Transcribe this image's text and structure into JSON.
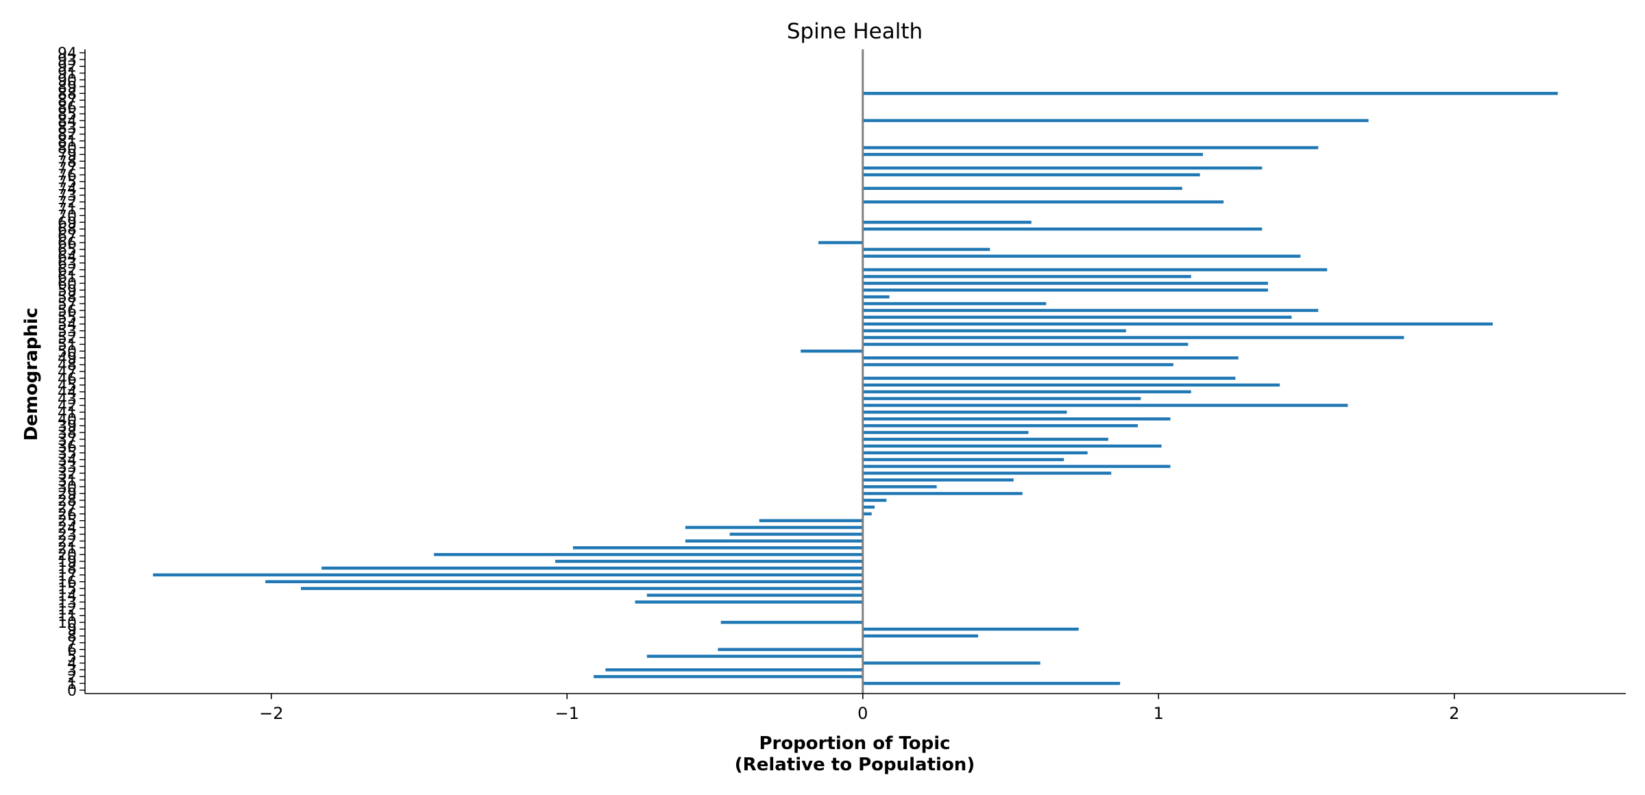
{
  "chart_data": {
    "type": "bar",
    "orientation": "horizontal",
    "title": "Spine Health",
    "xlabel_line1": "Proportion of Topic",
    "xlabel_line2": "(Relative to Population)",
    "ylabel": "Demographic",
    "xlim": [
      -2.63,
      2.58
    ],
    "ylim": [
      -0.5,
      94.5
    ],
    "xticks": [
      -2,
      -1,
      0,
      1,
      2
    ],
    "xtick_labels": [
      "−2",
      "−1",
      "0",
      "1",
      "2"
    ],
    "grid": false,
    "bar_color": "#1f77b4",
    "zero_line_color": "#808080",
    "categories": [
      0,
      1,
      2,
      3,
      4,
      5,
      6,
      7,
      8,
      9,
      10,
      11,
      12,
      13,
      14,
      15,
      16,
      17,
      18,
      19,
      20,
      21,
      22,
      23,
      24,
      25,
      26,
      27,
      28,
      29,
      30,
      31,
      32,
      33,
      34,
      35,
      36,
      37,
      38,
      39,
      40,
      41,
      42,
      43,
      44,
      45,
      46,
      47,
      48,
      49,
      50,
      51,
      52,
      53,
      54,
      55,
      56,
      57,
      58,
      59,
      60,
      61,
      62,
      63,
      64,
      65,
      66,
      67,
      68,
      69,
      70,
      71,
      72,
      73,
      74,
      75,
      76,
      77,
      78,
      79,
      80,
      81,
      82,
      83,
      84,
      85,
      86,
      87,
      88,
      89,
      90,
      91,
      92,
      93,
      94
    ],
    "values": [
      0,
      0.87,
      -0.91,
      -0.87,
      0.6,
      -0.73,
      -0.49,
      0,
      0.39,
      0.73,
      -0.48,
      0,
      0,
      -0.77,
      -0.73,
      -1.9,
      -2.02,
      -2.4,
      -1.83,
      -1.04,
      -1.45,
      -0.98,
      -0.6,
      -0.45,
      -0.6,
      -0.35,
      0.03,
      0.04,
      0.08,
      0.54,
      0.25,
      0.51,
      0.84,
      1.04,
      0.68,
      0.76,
      1.01,
      0.83,
      0.56,
      0.93,
      1.04,
      0.69,
      1.64,
      0.94,
      1.11,
      1.41,
      1.26,
      0,
      1.05,
      1.27,
      -0.21,
      1.1,
      1.83,
      0.89,
      2.13,
      1.45,
      1.54,
      0.62,
      0.09,
      1.37,
      1.37,
      1.11,
      1.57,
      0,
      1.48,
      0.43,
      -0.15,
      0,
      1.35,
      0.57,
      0,
      0,
      1.22,
      0,
      1.08,
      0,
      1.14,
      1.35,
      0,
      1.15,
      1.54,
      0,
      0,
      0,
      1.71,
      0,
      0,
      0,
      2.35,
      0,
      0,
      0,
      0,
      0,
      0
    ]
  }
}
